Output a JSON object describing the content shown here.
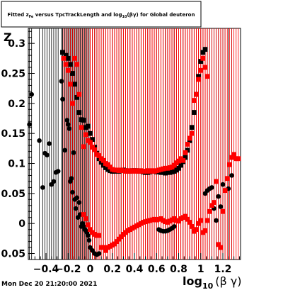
{
  "title": {
    "part1": "Fitted  z",
    "sub1": "Fe",
    "part2": "  versus TpcTrackLength and log",
    "sub2": "10",
    "part3": "(βγ) for Global deuteron"
  },
  "footer": "Mon Dec 20 21:20:00 2021",
  "ylabel_visible": "Z",
  "xlabel": {
    "main": "log",
    "sub": "10",
    "rest": "(β γ)"
  },
  "colors": {
    "series_black": "#000000",
    "series_red": "#ff0000",
    "axis": "#000000"
  },
  "chart_data": {
    "type": "scatter",
    "xlim": [
      -0.56,
      1.36
    ],
    "ylim": [
      -0.06,
      0.325
    ],
    "x_ticks": [
      -0.4,
      -0.2,
      0,
      0.2,
      0.4,
      0.6,
      0.8,
      1,
      1.2
    ],
    "x_tick_labels": [
      "−0.4",
      "−0.2",
      "0",
      "0.2",
      "0.4",
      "0.6",
      "0.8",
      "1",
      "1.2"
    ],
    "y_ticks": [
      -0.05,
      0,
      0.05,
      0.1,
      0.15,
      0.2,
      0.25,
      0.3
    ],
    "y_tick_labels": [
      "−0.05",
      "0",
      "0.05",
      "0.1",
      "0.15",
      "0.2",
      "0.25",
      "0.3"
    ],
    "grid": false,
    "series": [
      {
        "color": "black",
        "points": [
          [
            -0.55,
            0.165
          ],
          [
            -0.53,
            0.215
          ],
          [
            -0.46,
            0.138
          ],
          [
            -0.43,
            0.06
          ],
          [
            -0.41,
            0.117
          ],
          [
            -0.39,
            0.114
          ],
          [
            -0.37,
            0.133
          ],
          [
            -0.35,
            0.065
          ],
          [
            -0.33,
            0.07
          ],
          [
            -0.31,
            0.085
          ],
          [
            -0.29,
            0.087
          ],
          [
            -0.26,
            0.237
          ],
          [
            -0.25,
            0.207
          ],
          [
            -0.23,
            0.122
          ],
          [
            -0.21,
            0.172
          ],
          [
            -0.2,
            0.165
          ],
          [
            -0.19,
            0.158
          ],
          [
            -0.18,
            0.07
          ],
          [
            -0.17,
            0.075
          ],
          [
            -0.16,
            0.052
          ],
          [
            -0.15,
            0.118
          ],
          [
            -0.14,
            0.04
          ],
          [
            -0.13,
            0.025
          ],
          [
            -0.12,
            0.043
          ],
          [
            -0.11,
            0.01
          ],
          [
            -0.1,
            0.035
          ],
          [
            -0.09,
            0.015
          ],
          [
            -0.08,
            -0.005
          ],
          [
            -0.07,
            0.0
          ],
          [
            -0.06,
            -0.005
          ],
          [
            -0.05,
            -0.01
          ],
          [
            -0.04,
            -0.012
          ],
          [
            -0.03,
            -0.015
          ],
          [
            -0.02,
            -0.02
          ],
          [
            -0.01,
            -0.028
          ],
          [
            0.0,
            -0.04
          ],
          [
            0.02,
            -0.045
          ],
          [
            0.04,
            -0.05
          ],
          [
            0.06,
            -0.052
          ],
          [
            0.08,
            -0.05
          ],
          [
            0.62,
            -0.01
          ],
          [
            0.64,
            -0.012
          ],
          [
            0.66,
            -0.013
          ],
          [
            0.68,
            -0.013
          ],
          [
            0.7,
            -0.012
          ],
          [
            0.72,
            -0.01
          ],
          [
            0.74,
            -0.008
          ],
          [
            0.76,
            -0.005
          ],
          [
            1.04,
            0.05
          ],
          [
            1.06,
            0.055
          ],
          [
            1.08,
            0.058
          ],
          [
            1.1,
            0.06
          ],
          [
            1.12,
            0.025
          ],
          [
            1.14,
            0.005
          ],
          [
            1.16,
            0.045
          ],
          [
            1.18,
            0.028
          ],
          [
            1.2,
            0.065
          ],
          [
            1.22,
            0.055
          ],
          [
            1.25,
            0.058
          ],
          [
            1.28,
            0.08
          ]
        ]
      },
      {
        "color": "black",
        "points": [
          [
            -0.25,
            0.285
          ],
          [
            -0.22,
            0.28
          ],
          [
            -0.2,
            0.275
          ],
          [
            -0.18,
            0.265
          ],
          [
            -0.16,
            0.25
          ],
          [
            -0.14,
            0.232
          ],
          [
            -0.12,
            0.21
          ],
          [
            -0.1,
            0.185
          ],
          [
            -0.08,
            0.173
          ],
          [
            -0.06,
            0.172
          ],
          [
            -0.04,
            0.16
          ],
          [
            -0.02,
            0.162
          ],
          [
            0.0,
            0.15
          ],
          [
            0.02,
            0.14
          ],
          [
            0.04,
            0.127
          ],
          [
            0.06,
            0.117
          ],
          [
            0.08,
            0.108
          ],
          [
            0.1,
            0.102
          ],
          [
            0.12,
            0.097
          ],
          [
            0.14,
            0.093
          ],
          [
            0.16,
            0.09
          ],
          [
            0.18,
            0.088
          ],
          [
            0.2,
            0.087
          ],
          [
            0.22,
            0.087
          ],
          [
            0.24,
            0.088
          ],
          [
            0.26,
            0.087
          ],
          [
            0.28,
            0.088
          ],
          [
            0.3,
            0.089
          ],
          [
            0.32,
            0.088
          ],
          [
            0.34,
            0.087
          ],
          [
            0.36,
            0.087
          ],
          [
            0.38,
            0.088
          ],
          [
            0.4,
            0.088
          ],
          [
            0.42,
            0.088
          ],
          [
            0.44,
            0.087
          ],
          [
            0.46,
            0.087
          ],
          [
            0.48,
            0.086
          ],
          [
            0.5,
            0.085
          ],
          [
            0.52,
            0.085
          ],
          [
            0.54,
            0.086
          ],
          [
            0.56,
            0.087
          ],
          [
            0.58,
            0.087
          ],
          [
            0.6,
            0.086
          ],
          [
            0.62,
            0.086
          ],
          [
            0.64,
            0.085
          ],
          [
            0.66,
            0.085
          ],
          [
            0.68,
            0.084
          ],
          [
            0.7,
            0.085
          ],
          [
            0.72,
            0.085
          ],
          [
            0.74,
            0.086
          ],
          [
            0.76,
            0.087
          ],
          [
            0.78,
            0.089
          ],
          [
            0.8,
            0.092
          ],
          [
            0.82,
            0.097
          ],
          [
            0.84,
            0.103
          ],
          [
            0.86,
            0.11
          ],
          [
            0.88,
            0.122
          ],
          [
            0.9,
            0.138
          ],
          [
            0.92,
            0.16
          ],
          [
            0.94,
            0.185
          ],
          [
            0.96,
            0.215
          ],
          [
            0.98,
            0.245
          ],
          [
            1.0,
            0.27
          ],
          [
            1.02,
            0.285
          ],
          [
            1.04,
            0.29
          ]
        ]
      },
      {
        "color": "red",
        "points": [
          [
            -0.24,
            0.275
          ],
          [
            -0.22,
            0.265
          ],
          [
            -0.2,
            0.255
          ],
          [
            -0.18,
            0.232
          ],
          [
            -0.16,
            0.2
          ],
          [
            -0.14,
            0.275
          ],
          [
            -0.12,
            0.265
          ],
          [
            -0.1,
            0.215
          ],
          [
            -0.08,
            0.16
          ],
          [
            -0.06,
            0.128
          ],
          [
            -0.04,
            0.148
          ],
          [
            -0.02,
            0.138
          ],
          [
            0.0,
            0.135
          ],
          [
            0.02,
            0.127
          ],
          [
            0.04,
            0.123
          ],
          [
            0.06,
            0.115
          ],
          [
            0.08,
            0.113
          ],
          [
            0.1,
            0.108
          ],
          [
            0.12,
            0.105
          ],
          [
            0.14,
            0.1
          ],
          [
            0.16,
            0.098
          ],
          [
            0.18,
            0.094
          ],
          [
            0.2,
            0.09
          ],
          [
            0.22,
            0.089
          ],
          [
            0.24,
            0.089
          ],
          [
            0.26,
            0.088
          ],
          [
            0.28,
            0.089
          ],
          [
            0.3,
            0.088
          ],
          [
            0.32,
            0.087
          ],
          [
            0.34,
            0.088
          ],
          [
            0.36,
            0.087
          ],
          [
            0.38,
            0.088
          ],
          [
            0.4,
            0.087
          ],
          [
            0.42,
            0.088
          ],
          [
            0.44,
            0.087
          ],
          [
            0.46,
            0.088
          ],
          [
            0.48,
            0.087
          ],
          [
            0.5,
            0.087
          ],
          [
            0.52,
            0.088
          ],
          [
            0.54,
            0.087
          ],
          [
            0.56,
            0.088
          ],
          [
            0.58,
            0.087
          ],
          [
            0.6,
            0.088
          ],
          [
            0.62,
            0.089
          ],
          [
            0.64,
            0.09
          ],
          [
            0.66,
            0.091
          ],
          [
            0.68,
            0.092
          ],
          [
            0.7,
            0.092
          ],
          [
            0.72,
            0.093
          ],
          [
            0.74,
            0.094
          ],
          [
            0.76,
            0.097
          ],
          [
            0.78,
            0.101
          ],
          [
            0.8,
            0.104
          ],
          [
            0.82,
            0.108
          ],
          [
            0.84,
            0.105
          ],
          [
            0.86,
            0.118
          ],
          [
            0.88,
            0.132
          ],
          [
            0.9,
            0.142
          ],
          [
            0.92,
            0.15
          ],
          [
            0.94,
            0.205
          ],
          [
            0.96,
            0.215
          ],
          [
            0.98,
            0.24
          ],
          [
            1.0,
            0.255
          ],
          [
            1.02,
            0.275
          ],
          [
            1.04,
            0.26
          ],
          [
            1.06,
            0.245
          ]
        ]
      },
      {
        "color": "red",
        "points": [
          [
            -0.06,
            0.015
          ],
          [
            -0.04,
            0.008
          ],
          [
            -0.02,
            -0.002
          ],
          [
            0.0,
            -0.01
          ],
          [
            0.02,
            -0.015
          ],
          [
            0.04,
            -0.018
          ],
          [
            0.06,
            -0.02
          ],
          [
            0.08,
            -0.02
          ],
          [
            0.1,
            -0.04
          ],
          [
            0.12,
            -0.04
          ],
          [
            0.14,
            -0.045
          ],
          [
            0.16,
            -0.04
          ],
          [
            0.18,
            -0.038
          ],
          [
            0.2,
            -0.036
          ],
          [
            0.22,
            -0.034
          ],
          [
            0.24,
            -0.03
          ],
          [
            0.26,
            -0.026
          ],
          [
            0.28,
            -0.022
          ],
          [
            0.3,
            -0.018
          ],
          [
            0.32,
            -0.015
          ],
          [
            0.34,
            -0.012
          ],
          [
            0.36,
            -0.01
          ],
          [
            0.38,
            -0.008
          ],
          [
            0.4,
            -0.006
          ],
          [
            0.42,
            -0.004
          ],
          [
            0.44,
            -0.002
          ],
          [
            0.46,
            0.0
          ],
          [
            0.48,
            0.002
          ],
          [
            0.5,
            0.003
          ],
          [
            0.52,
            0.004
          ],
          [
            0.54,
            0.005
          ],
          [
            0.56,
            0.006
          ],
          [
            0.58,
            0.007
          ],
          [
            0.6,
            0.006
          ],
          [
            0.62,
            0.007
          ],
          [
            0.64,
            0.008
          ],
          [
            0.66,
            0.005
          ],
          [
            0.68,
            0.003
          ],
          [
            0.7,
            0.002
          ],
          [
            0.72,
            0.004
          ],
          [
            0.74,
            0.006
          ],
          [
            0.76,
            0.008
          ],
          [
            0.78,
            0.005
          ],
          [
            0.8,
            0.004
          ],
          [
            0.82,
            0.008
          ],
          [
            0.84,
            0.01
          ],
          [
            0.86,
            0.012
          ],
          [
            0.88,
            0.007
          ],
          [
            0.9,
            0.002
          ],
          [
            0.92,
            -0.005
          ],
          [
            0.94,
            -0.013
          ],
          [
            0.96,
            -0.01
          ],
          [
            0.98,
            0.0
          ],
          [
            1.0,
            0.005
          ],
          [
            1.02,
            -0.015
          ],
          [
            1.04,
            -0.012
          ],
          [
            1.06,
            0.005
          ],
          [
            1.08,
            0.02
          ],
          [
            1.1,
            0.03
          ],
          [
            1.12,
            0.035
          ],
          [
            1.14,
            0.07
          ],
          [
            1.16,
            -0.035
          ],
          [
            1.18,
            -0.04
          ],
          [
            1.2,
            0.02
          ],
          [
            1.22,
            0.055
          ],
          [
            1.24,
            0.075
          ],
          [
            1.26,
            0.098
          ],
          [
            1.28,
            0.11
          ],
          [
            1.3,
            0.115
          ],
          [
            1.32,
            0.108
          ],
          [
            1.34,
            0.108
          ]
        ]
      }
    ]
  }
}
